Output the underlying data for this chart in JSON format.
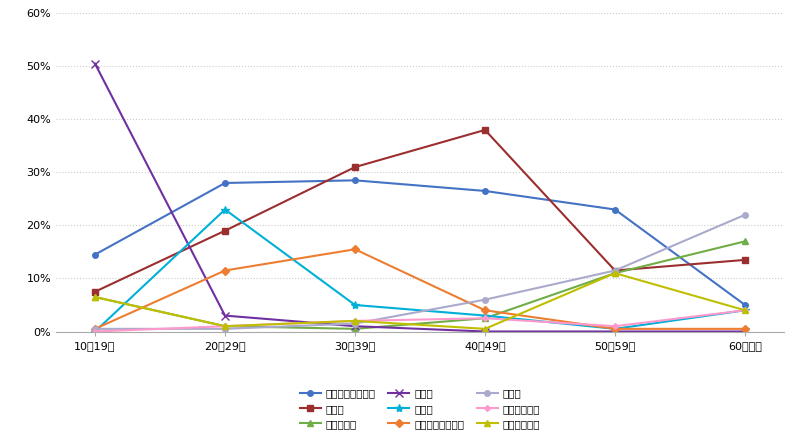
{
  "categories": [
    "10～19歳",
    "20～29歳",
    "30～39歳",
    "40～49歳",
    "50～59歳",
    "60歳以上"
  ],
  "series": [
    {
      "label": "就職・転職・転業",
      "values": [
        14.5,
        28.0,
        28.5,
        26.5,
        23.0,
        5.0
      ],
      "color": "#4472C4",
      "marker": "o",
      "markersize": 4
    },
    {
      "label": "転　動",
      "values": [
        7.5,
        19.0,
        31.0,
        38.0,
        11.5,
        13.5
      ],
      "color": "#9B2E2E",
      "marker": "s",
      "markersize": 4
    },
    {
      "label": "退職・廃業",
      "values": [
        6.5,
        1.0,
        0.5,
        2.5,
        11.0,
        17.0
      ],
      "color": "#70AD47",
      "marker": "^",
      "markersize": 5
    },
    {
      "label": "就　学",
      "values": [
        50.5,
        3.0,
        1.0,
        0.0,
        0.0,
        0.0
      ],
      "color": "#7030A0",
      "marker": "x",
      "markersize": 6
    },
    {
      "label": "卒　業",
      "values": [
        0.0,
        23.0,
        5.0,
        3.0,
        0.5,
        4.0
      ],
      "color": "#00B0D8",
      "marker": "*",
      "markersize": 6
    },
    {
      "label": "結婚・離婚・縁組",
      "values": [
        0.5,
        11.5,
        15.5,
        4.0,
        0.5,
        0.5
      ],
      "color": "#ED7D31",
      "marker": "D",
      "markersize": 4
    },
    {
      "label": "住　宅",
      "values": [
        0.5,
        0.5,
        1.5,
        6.0,
        11.5,
        22.0
      ],
      "color": "#AAAACC",
      "marker": "o",
      "markersize": 4
    },
    {
      "label": "交通の利便性",
      "values": [
        0.0,
        1.0,
        2.0,
        2.5,
        1.0,
        4.0
      ],
      "color": "#FF99CC",
      "marker": "D",
      "markersize": 3
    },
    {
      "label": "生活の利便性",
      "values": [
        6.5,
        1.0,
        2.0,
        0.5,
        11.0,
        4.0
      ],
      "color": "#BFBF00",
      "marker": "^",
      "markersize": 5
    }
  ],
  "ylim": [
    0,
    60
  ],
  "yticks": [
    0,
    10,
    20,
    30,
    40,
    50,
    60
  ],
  "ytick_labels": [
    "0%",
    "10%",
    "20%",
    "30%",
    "40%",
    "50%",
    "60%"
  ],
  "figsize": [
    8.0,
    4.42
  ],
  "dpi": 100,
  "background_color": "#FFFFFF",
  "grid_color": "#CCCCCC",
  "legend_fontsize": 7.5,
  "tick_fontsize": 8,
  "linewidth": 1.5,
  "legend_order": [
    "就職・転職・転業",
    "転　動",
    "退職・廃業",
    "就　学",
    "卒　業",
    "結婚・離婚・縁組",
    "住　宅",
    "交通の利便性",
    "生活の利便性"
  ]
}
